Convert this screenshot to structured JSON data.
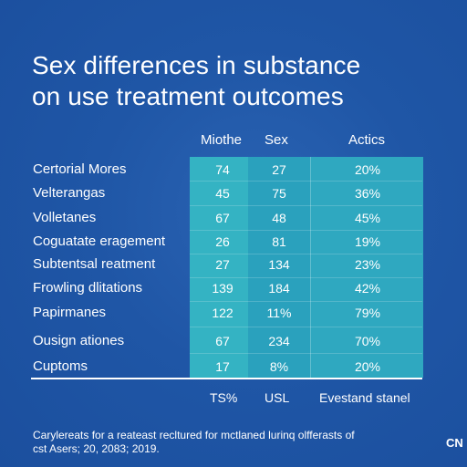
{
  "title": {
    "line1": "Sex differences in substance",
    "line2": "on use treatment outcomes"
  },
  "column_headers": [
    "Miothe",
    "Sex",
    "Actics"
  ],
  "rows": [
    {
      "label": "Certorial Mores",
      "v1": "74",
      "v2": "27",
      "v3": "20%"
    },
    {
      "label": "Velterangas",
      "v1": "45",
      "v2": "75",
      "v3": "36%"
    },
    {
      "label": "Volletanes",
      "v1": "67",
      "v2": "48",
      "v3": "45%"
    },
    {
      "label": "Coguatate eragement",
      "v1": "26",
      "v2": "81",
      "v3": "19%"
    },
    {
      "label": "Subtentsal reatment",
      "v1": "27",
      "v2": "134",
      "v3": "23%"
    },
    {
      "label": "Frowling dlitations",
      "v1": "139",
      "v2": "184",
      "v3": "42%"
    },
    {
      "label": "Papirmanes",
      "v1": "122",
      "v2": "11%",
      "v3": "79%"
    },
    {
      "label": "Ousign ationes",
      "v1": "67",
      "v2": "234",
      "v3": "70%"
    },
    {
      "label": "Cuptoms",
      "v1": "17",
      "v2": "8%",
      "v3": "20%"
    }
  ],
  "footer_labels": [
    "TS%",
    "USL",
    "Evestand stanel"
  ],
  "note": {
    "line1": "Carylereats for a reateast recltured for mctlaned lurinq olfferasts of",
    "line2": "cst Asers; 20, 2083; 2019."
  },
  "logo_text": "CN",
  "colors": {
    "background": "#1f56a6",
    "table_fill": "#2aa6be"
  }
}
